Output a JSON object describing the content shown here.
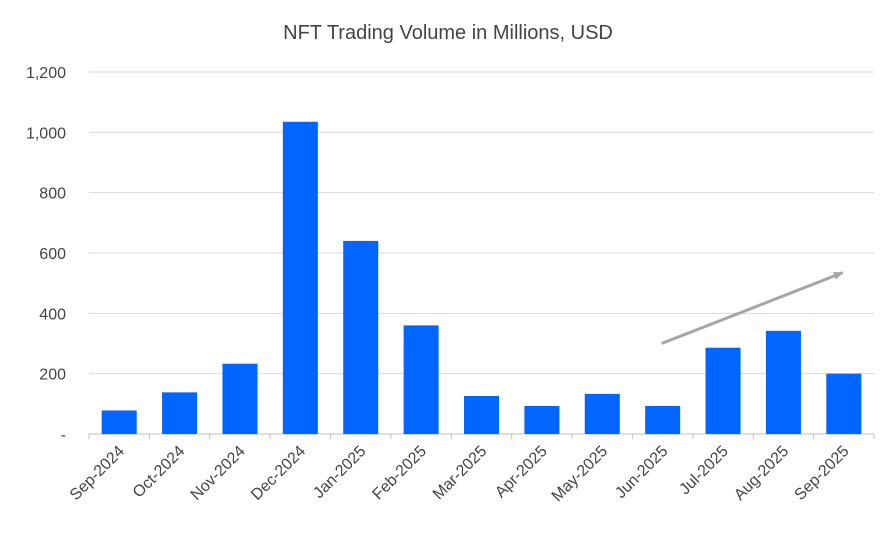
{
  "chart_data": {
    "type": "bar",
    "title": "NFT Trading Volume in Millions, USD",
    "xlabel": "",
    "ylabel": "",
    "categories": [
      "Sep-2024",
      "Oct-2024",
      "Nov-2024",
      "Dec-2024",
      "Jan-2025",
      "Feb-2025",
      "Mar-2025",
      "Apr-2025",
      "May-2025",
      "Jun-2025",
      "Jul-2025",
      "Aug-2025",
      "Sep-2025"
    ],
    "values": [
      78,
      138,
      233,
      1035,
      640,
      360,
      126,
      93,
      133,
      93,
      286,
      342,
      200
    ],
    "ylim": [
      0,
      1200
    ],
    "yticks": [
      0,
      200,
      400,
      600,
      800,
      1000,
      1200
    ],
    "ytick_labels": [
      "-",
      "200",
      "400",
      "600",
      "800",
      "1,000",
      "1,200"
    ],
    "grid": true,
    "colors": {
      "bar": "#0066ff",
      "trend_arrow": "#a6a6a6"
    },
    "annotations": [
      {
        "type": "trend-arrow",
        "from": {
          "category": "Jun-2025",
          "y": 300
        },
        "to": {
          "category": "Sep-2025",
          "y": 535
        }
      }
    ]
  }
}
